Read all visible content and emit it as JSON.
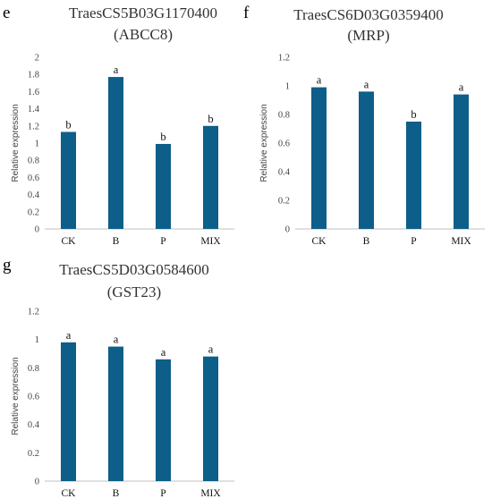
{
  "colors": {
    "bar": "#0e5e8a",
    "axis": "#bfbfbf",
    "text": "#444444"
  },
  "chart_data": [
    {
      "type": "bar",
      "panel": "e",
      "title_lines": [
        "TraesCS5B03G1170400",
        "(ABCC8)"
      ],
      "ylabel": "Relative expression",
      "categories": [
        "CK",
        "B",
        "P",
        "MIX"
      ],
      "values": [
        1.13,
        1.77,
        0.99,
        1.2
      ],
      "significance": [
        "b",
        "a",
        "b",
        "b"
      ],
      "ylim": [
        0,
        2
      ],
      "yticks": [
        0,
        0.2,
        0.4,
        0.6,
        0.8,
        1,
        1.2,
        1.4,
        1.6,
        1.8,
        2
      ],
      "ytick_labels": [
        "0",
        "0.2",
        "0.4",
        "0.6",
        "0.8",
        "1",
        "1.2",
        "1.4",
        "1.6",
        "1.8",
        "2"
      ]
    },
    {
      "type": "bar",
      "panel": "f",
      "title_lines": [
        "TraesCS6D03G0359400",
        "(MRP)"
      ],
      "ylabel": "Relative expression",
      "categories": [
        "CK",
        "B",
        "P",
        "MIX"
      ],
      "values": [
        0.99,
        0.96,
        0.75,
        0.94
      ],
      "significance": [
        "a",
        "a",
        "b",
        "a"
      ],
      "ylim": [
        0,
        1.2
      ],
      "yticks": [
        0,
        0.2,
        0.4,
        0.6,
        0.8,
        1,
        1.2
      ],
      "ytick_labels": [
        "0",
        "0.2",
        "0.4",
        "0.6",
        "0.8",
        "1",
        "1.2"
      ]
    },
    {
      "type": "bar",
      "panel": "g",
      "title_lines": [
        "TraesCS5D03G0584600",
        "(GST23)"
      ],
      "ylabel": "Relative expression",
      "categories": [
        "CK",
        "B",
        "P",
        "MIX"
      ],
      "values": [
        0.98,
        0.95,
        0.86,
        0.88
      ],
      "significance": [
        "a",
        "a",
        "a",
        "a"
      ],
      "ylim": [
        0,
        1.2
      ],
      "yticks": [
        0,
        0.2,
        0.4,
        0.6,
        0.8,
        1,
        1.2
      ],
      "ytick_labels": [
        "0",
        "0.2",
        "0.4",
        "0.6",
        "0.8",
        "1",
        "1.2"
      ]
    }
  ]
}
